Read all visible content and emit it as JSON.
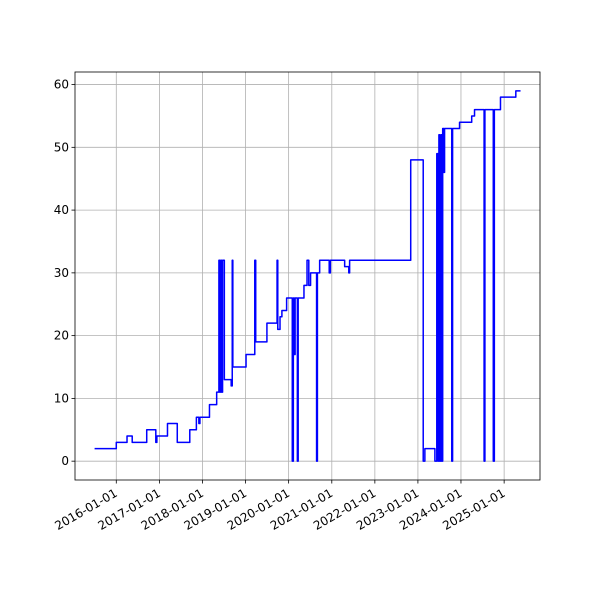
{
  "chart_data": {
    "type": "line",
    "drawstyle": "steps-post",
    "grid": true,
    "xlim": [
      "2015-01-16",
      "2025-11-01"
    ],
    "xticks": [
      "2016-01-01",
      "2017-01-01",
      "2018-01-01",
      "2019-01-01",
      "2020-01-01",
      "2021-01-01",
      "2022-01-01",
      "2023-01-01",
      "2024-01-01",
      "2025-01-01"
    ],
    "ylim": [
      -3,
      62
    ],
    "yticks": [
      0,
      10,
      20,
      30,
      40,
      50,
      60
    ],
    "x": [
      "2015-07-01",
      "2016-01-01",
      "2016-04-01",
      "2016-05-15",
      "2016-09-15",
      "2016-12-01",
      "2016-12-10",
      "2017-03-10",
      "2017-06-01",
      "2017-09-15",
      "2017-11-10",
      "2017-12-01",
      "2017-12-10",
      "2018-03-01",
      "2018-05-01",
      "2018-05-20",
      "2018-05-28",
      "2018-06-05",
      "2018-06-12",
      "2018-06-20",
      "2018-07-05",
      "2018-09-01",
      "2018-09-10",
      "2018-09-15",
      "2019-01-05",
      "2019-03-20",
      "2019-03-28",
      "2019-07-01",
      "2019-09-25",
      "2019-10-01",
      "2019-10-20",
      "2019-11-05",
      "2019-12-15",
      "2020-02-01",
      "2020-02-10",
      "2020-02-18",
      "2020-02-25",
      "2020-03-15",
      "2020-03-22",
      "2020-05-10",
      "2020-06-05",
      "2020-06-20",
      "2020-07-05",
      "2020-08-25",
      "2020-09-01",
      "2020-09-20",
      "2020-12-10",
      "2020-12-20",
      "2021-04-20",
      "2021-05-25",
      "2021-06-01",
      "2022-11-01",
      "2023-02-15",
      "2023-03-01",
      "2023-05-25",
      "2023-06-10",
      "2023-06-20",
      "2023-06-28",
      "2023-07-05",
      "2023-07-15",
      "2023-07-22",
      "2023-07-30",
      "2023-08-08",
      "2023-08-15",
      "2023-10-15",
      "2023-10-22",
      "2023-12-20",
      "2024-04-01",
      "2024-04-25",
      "2024-07-15",
      "2024-07-22",
      "2024-10-01",
      "2024-10-10",
      "2024-12-01",
      "2025-04-10",
      "2025-05-20"
    ],
    "series": [
      {
        "color": "#0000ff",
        "values": [
          2,
          3,
          4,
          3,
          5,
          3,
          4,
          6,
          3,
          5,
          7,
          6,
          7,
          9,
          11,
          32,
          11,
          32,
          11,
          32,
          13,
          12,
          32,
          15,
          17,
          32,
          19,
          22,
          32,
          21,
          23,
          24,
          26,
          0,
          26,
          17,
          26,
          0,
          26,
          28,
          32,
          28,
          30,
          0,
          30,
          32,
          30,
          32,
          31,
          30,
          32,
          48,
          0,
          2,
          0,
          49,
          0,
          52,
          0,
          52,
          0,
          53,
          46,
          53,
          0,
          53,
          54,
          55,
          56,
          0,
          56,
          0,
          56,
          58,
          59,
          59
        ]
      }
    ]
  }
}
